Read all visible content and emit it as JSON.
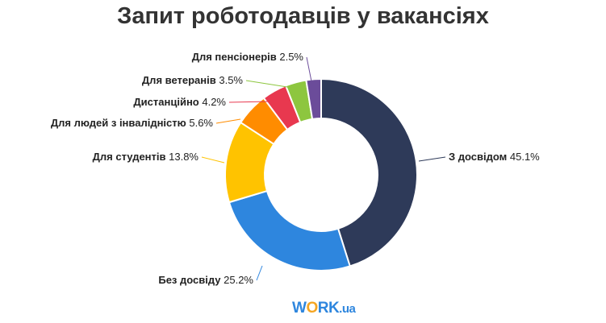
{
  "chart_data": {
    "type": "pie",
    "donut": true,
    "title": "Запит роботодавців у вакансіях",
    "slices": [
      {
        "label": "З досвідом",
        "value": 45.1,
        "display": "45.1%",
        "color": "#2e3a59"
      },
      {
        "label": "Без досвіду",
        "value": 25.2,
        "display": "25.2%",
        "color": "#2e86de"
      },
      {
        "label": "Для студентів",
        "value": 13.8,
        "display": "13.8%",
        "color": "#ffc300"
      },
      {
        "label": "Для людей з інвалідністю",
        "value": 5.6,
        "display": "5.6%",
        "color": "#ff8c00"
      },
      {
        "label": "Дистанційно",
        "value": 4.2,
        "display": "4.2%",
        "color": "#e8384f"
      },
      {
        "label": "Для ветеранів",
        "value": 3.5,
        "display": "3.5%",
        "color": "#8dc63f"
      },
      {
        "label": "Для пенсіонерів",
        "value": 2.5,
        "display": "2.5%",
        "color": "#6b4c9a"
      }
    ],
    "legend": "none"
  },
  "logo": {
    "w": "W",
    "o": "O",
    "rk": "RK",
    "ua": ".ua"
  }
}
